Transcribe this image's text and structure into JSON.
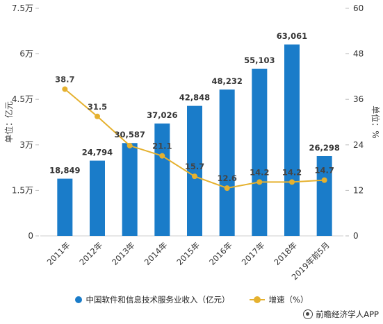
{
  "chart_data": {
    "type": "bar",
    "categories": [
      "2011年",
      "2012年",
      "2013年",
      "2014年",
      "2015年",
      "2016年",
      "2017年",
      "2018年",
      "2019年前5月"
    ],
    "y_left_label": "单位：亿元",
    "y_right_label": "单位：%",
    "y_left_ticks": [
      "0",
      "1.5万",
      "3万",
      "4.5万",
      "6万",
      "7.5万"
    ],
    "y_left_range": [
      0,
      75000
    ],
    "y_right_ticks": [
      "0",
      "12",
      "24",
      "36",
      "48",
      "60"
    ],
    "y_right_range": [
      0,
      60
    ],
    "series": [
      {
        "name": "中国软件和信息技术服务业收入（亿元）",
        "kind": "bar",
        "color": "#1a7cc9",
        "values": [
          18849,
          24794,
          30587,
          37026,
          42848,
          48232,
          55103,
          63061,
          26298
        ],
        "labels": [
          "18,849",
          "24,794",
          "30,587",
          "37,026",
          "42,848",
          "48,232",
          "55,103",
          "63,061",
          "26,298"
        ]
      },
      {
        "name": "增速（%）",
        "kind": "line",
        "axis": "right",
        "color": "#e5b12f",
        "values": [
          38.7,
          31.5,
          23.8,
          21.1,
          15.7,
          12.6,
          14.2,
          14.2,
          14.7
        ],
        "labels": [
          "38.7",
          "31.5",
          "",
          "21.1",
          "15.7",
          "12.6",
          "14.2",
          "14.2",
          "14.7"
        ]
      }
    ],
    "legend_position": "bottom",
    "grid": false
  },
  "source": {
    "label": "前瞻经济学人APP"
  }
}
